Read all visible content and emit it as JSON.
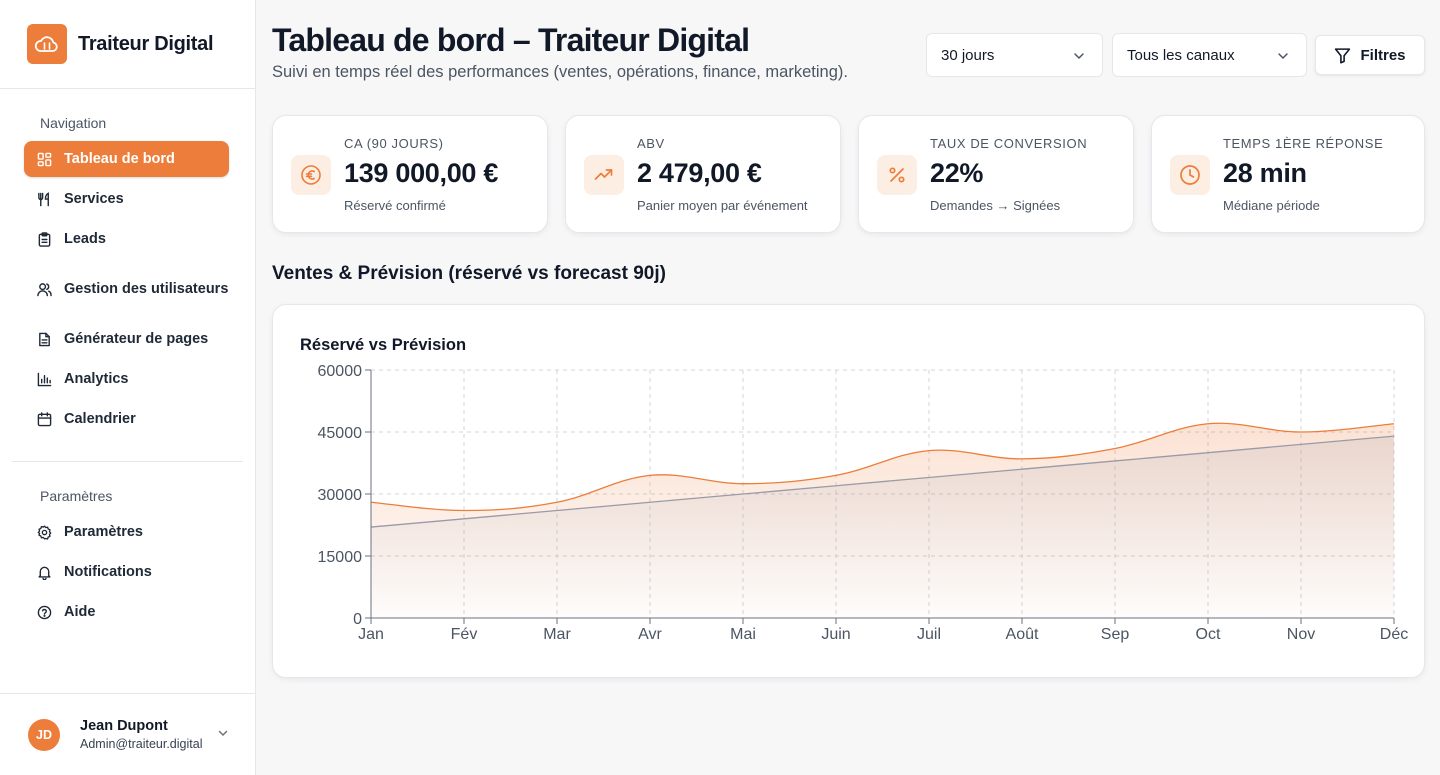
{
  "brand": {
    "name": "Traiteur Digital",
    "accent": "#ed7d3a"
  },
  "sidebar": {
    "section_navigation": "Navigation",
    "nav": [
      {
        "label": "Tableau de bord",
        "icon": "dashboard-icon",
        "active": true
      },
      {
        "label": "Services",
        "icon": "utensils-icon"
      },
      {
        "label": "Leads",
        "icon": "clipboard-icon"
      },
      {
        "label": "Gestion des utilisateurs",
        "icon": "users-icon"
      },
      {
        "label": "Générateur de pages",
        "icon": "file-icon"
      },
      {
        "label": "Analytics",
        "icon": "bar-chart-icon"
      },
      {
        "label": "Calendrier",
        "icon": "calendar-icon"
      }
    ],
    "section_settings": "Paramètres",
    "settings": [
      {
        "label": "Paramètres",
        "icon": "gear-icon"
      },
      {
        "label": "Notifications",
        "icon": "bell-icon"
      },
      {
        "label": "Aide",
        "icon": "help-icon"
      }
    ],
    "user": {
      "initials": "JD",
      "name": "Jean Dupont",
      "email": "Admin@traiteur.digital"
    }
  },
  "header": {
    "title": "Tableau de bord – Traiteur Digital",
    "subtitle": "Suivi en temps réel des performances (ventes, opérations, finance, marketing)."
  },
  "controls": {
    "period": "30 jours",
    "channel": "Tous les canaux",
    "filters_label": "Filtres"
  },
  "kpis": [
    {
      "label": "CA (90 jours)",
      "value": "139 000,00 €",
      "sub": "Réservé confirmé",
      "icon": "euro-icon"
    },
    {
      "label": "ABV",
      "value": "2 479,00 €",
      "sub": "Panier moyen par événement",
      "icon": "trending-up-icon"
    },
    {
      "label": "Taux de conversion",
      "value": "22%",
      "sub": "Demandes → Signées",
      "icon": "percent-icon"
    },
    {
      "label": "Temps 1ère réponse",
      "value": "28 min",
      "sub": "Médiane période",
      "icon": "clock-icon"
    }
  ],
  "section": {
    "title": "Ventes & Prévision (réservé vs forecast 90j)"
  },
  "chart_data": {
    "type": "area",
    "title": "Réservé vs Prévision",
    "categories": [
      "Jan",
      "Fév",
      "Mar",
      "Avr",
      "Mai",
      "Juin",
      "Juil",
      "Août",
      "Sep",
      "Oct",
      "Nov",
      "Déc"
    ],
    "series": [
      {
        "name": "Réservé",
        "color": "#ed7d3a",
        "values": [
          28000,
          26000,
          28000,
          34500,
          32500,
          34500,
          40500,
          38500,
          41000,
          47000,
          45000,
          47000
        ]
      },
      {
        "name": "Prévision",
        "color": "#9a9aa8",
        "values": [
          22000,
          24000,
          26000,
          28000,
          30000,
          32000,
          34000,
          36000,
          38000,
          40000,
          42000,
          44000
        ]
      }
    ],
    "yticks": [
      "0",
      "15000",
      "30000",
      "45000",
      "60000"
    ],
    "ylim": [
      0,
      60000
    ],
    "grid": true
  }
}
